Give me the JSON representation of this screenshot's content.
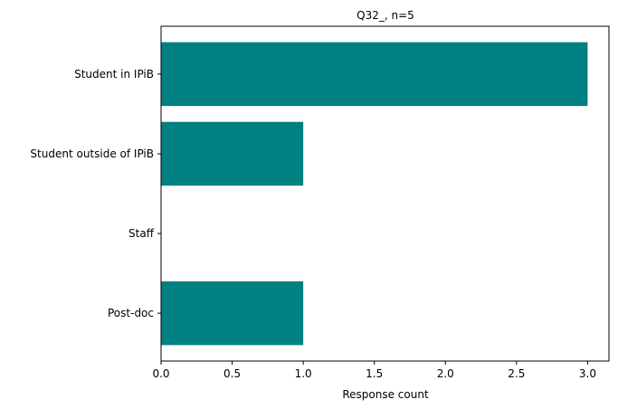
{
  "chart_data": {
    "type": "bar",
    "orientation": "horizontal",
    "title": "Q32_, n=5",
    "xlabel": "Response count",
    "ylabel": "",
    "categories": [
      "Student in IPiB",
      "Student outside of IPiB",
      "Staff",
      "Post-doc"
    ],
    "values": [
      3,
      1,
      0,
      1
    ],
    "xlim": [
      0,
      3.15
    ],
    "xticks": [
      "0.0",
      "0.5",
      "1.0",
      "1.5",
      "2.0",
      "2.5",
      "3.0"
    ],
    "grid": false,
    "bar_color": "#008080"
  }
}
